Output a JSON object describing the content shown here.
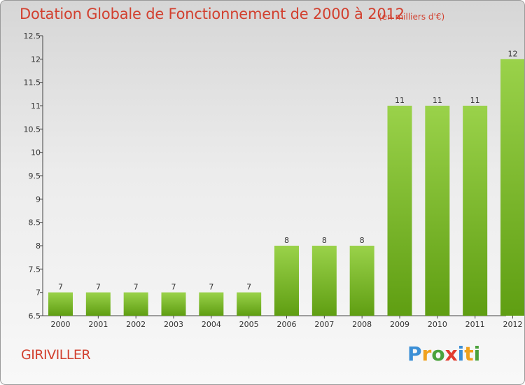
{
  "title": "Dotation Globale de Fonctionnement de 2000 à 2012",
  "subtitle": "(en milliers d'€)",
  "commune": "GIRIVILLER",
  "logo": {
    "text": "Proxiti",
    "letters": [
      "P",
      "r",
      "o",
      "x",
      "i",
      "t",
      "i"
    ]
  },
  "colors": {
    "title": "#d2402f",
    "bar_top": "#9ad24a",
    "bar_bottom": "#5f9e12"
  },
  "chart_data": {
    "type": "bar",
    "categories": [
      "2000",
      "2001",
      "2002",
      "2003",
      "2004",
      "2005",
      "2006",
      "2007",
      "2008",
      "2009",
      "2010",
      "2011",
      "2012"
    ],
    "values": [
      7,
      7,
      7,
      7,
      7,
      7,
      8,
      8,
      8,
      11,
      11,
      11,
      12
    ],
    "data_labels": [
      "7",
      "7",
      "7",
      "7",
      "7",
      "7",
      "8",
      "8",
      "8",
      "11",
      "11",
      "11",
      "12"
    ],
    "title": "Dotation Globale de Fonctionnement de 2000 à 2012",
    "xlabel": "",
    "ylabel": "",
    "ylim": [
      6.5,
      12.5
    ],
    "yticks": [
      6.5,
      7,
      7.5,
      8,
      8.5,
      9,
      9.5,
      10,
      10.5,
      11,
      11.5,
      12,
      12.5
    ],
    "ytick_labels": [
      "6.5",
      "7",
      "7.5",
      "8",
      "8.5",
      "9",
      "9.5",
      "10",
      "10.5",
      "11",
      "11.5",
      "12",
      "12.5"
    ],
    "grid": false,
    "legend": "none"
  }
}
